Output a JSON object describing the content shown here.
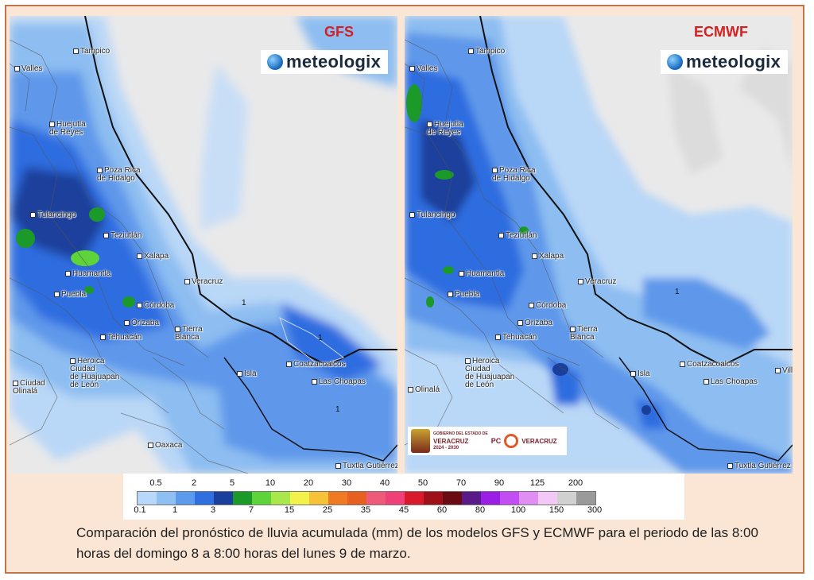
{
  "maps": {
    "gfs": {
      "model": "GFS",
      "brand": "meteologix",
      "cities": [
        "Tampico",
        "Valles",
        "Huejutla\nde Reyes",
        "Poza Rica\nde Hidalgo",
        "Tulancingo",
        "Teziutlán",
        "Xalapa",
        "Huamantla",
        "Puebla",
        "Córdoba",
        "Veracruz",
        "Orizaba",
        "Tierra\nBlanca",
        "Tehuacán",
        "Heroica\nCiudad\nde Huajuapan\nde León",
        "Coatzacoalcos",
        "Las Choapas",
        "Isla",
        "Oaxaca",
        "Tuxtla Gutiérrez",
        "Ciudad\nOlinalá"
      ],
      "contours": [
        "1",
        "1",
        "1"
      ]
    },
    "ecmwf": {
      "model": "ECMWF",
      "brand": "meteologix",
      "cities": [
        "Tampico",
        "Valles",
        "Huejutla\nde Reyes",
        "Poza Rica\nde Hidalgo",
        "Tulancingo",
        "Teziutlán",
        "Xalapa",
        "Huamantla",
        "Puebla",
        "Córdoba",
        "Veracruz",
        "Orizaba",
        "Tierra\nBlanca",
        "Tehuacán",
        "Heroica\nCiudad\nde Huajuapan\nde León",
        "Coatzacoalcos",
        "Las Choapas",
        "Isla",
        "Villa",
        "Tuxtla Gutiérrez",
        "Olinalá"
      ],
      "contours": [
        "1"
      ]
    }
  },
  "gov_logos": {
    "state": "GOBIERNO DEL ESTADO DE",
    "veracruz": "VERACRUZ",
    "years": "2024 - 2030",
    "pc": "PC",
    "pc_veracruz": "VERACRUZ"
  },
  "legend": {
    "top_labels": [
      "0.5",
      "2",
      "5",
      "10",
      "20",
      "30",
      "40",
      "50",
      "70",
      "90",
      "125",
      "200"
    ],
    "bottom_labels": [
      "0.1",
      "1",
      "3",
      "7",
      "15",
      "25",
      "35",
      "45",
      "60",
      "80",
      "100",
      "150",
      "300"
    ],
    "colors": [
      "#b7d8fb",
      "#8fc0f4",
      "#5c9aee",
      "#2f6fe0",
      "#1b3f9c",
      "#1b9a2a",
      "#5ed33a",
      "#a8e84a",
      "#f3f24a",
      "#f5c23a",
      "#f07a23",
      "#e8601f",
      "#ef5a7a",
      "#f0407a",
      "#d81a2a",
      "#a0101a",
      "#6a0a12",
      "#5a1a8a",
      "#9a1ee6",
      "#c24df2",
      "#e08ef4",
      "#f2c8f6",
      "#d0d0d0",
      "#9a9a9a"
    ]
  },
  "caption": "Comparación del pronóstico de lluvia acumulada (mm) de los modelos GFS y ECMWF para el periodo de las 8:00 horas del domingo 8 a 8:00 horas del lunes 9 de marzo."
}
